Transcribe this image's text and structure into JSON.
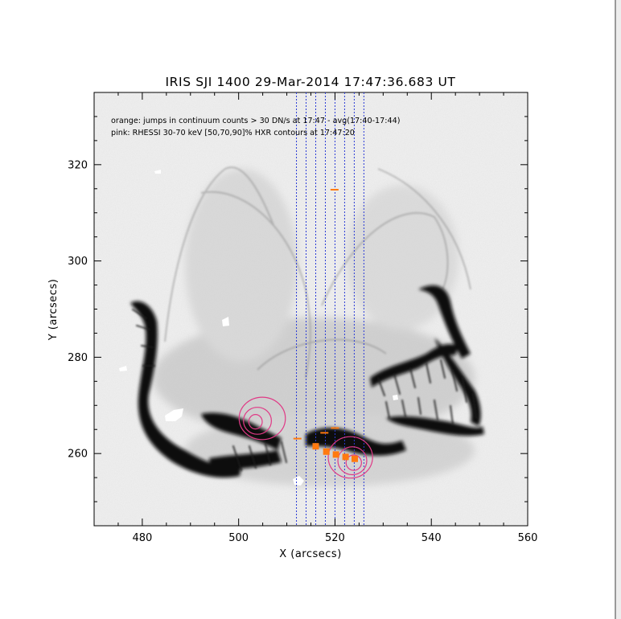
{
  "figure": {
    "title": "IRIS SJI 1400 29-Mar-2014 17:47:36.683 UT",
    "xlabel": "X (arcsecs)",
    "ylabel": "Y (arcsecs)",
    "annotations": [
      "orange: jumps in continuum counts > 30 DN/s at 17:47 - avg(17:40-17:44)",
      "pink: RHESSI 30-70 keV [50,70,90]% HXR contours at 17:47:20"
    ]
  },
  "axes": {
    "xlim": [
      470,
      560
    ],
    "ylim": [
      245,
      335
    ],
    "xticks": [
      480,
      500,
      520,
      540,
      560
    ],
    "yticks": [
      260,
      280,
      300,
      320
    ],
    "xtick_labels": [
      "480",
      "500",
      "520",
      "540",
      "560"
    ],
    "ytick_labels": [
      "260",
      "280",
      "300",
      "320"
    ]
  },
  "slit_positions_x": [
    512,
    514,
    516,
    518,
    520,
    522,
    524,
    526
  ],
  "colors": {
    "slits": "#2a3bd6",
    "orange": "#ff7a10",
    "pink": "#e03a86",
    "background": "#e9e9e9",
    "dark_emission": "#101010"
  },
  "orange_points": [
    {
      "x": 516,
      "y": 261.5,
      "kind": "square"
    },
    {
      "x": 518.2,
      "y": 260.4,
      "kind": "square"
    },
    {
      "x": 520.2,
      "y": 259.8,
      "kind": "square"
    },
    {
      "x": 522.2,
      "y": 259.3,
      "kind": "square"
    },
    {
      "x": 524.1,
      "y": 258.9,
      "kind": "square"
    },
    {
      "x": 519.9,
      "y": 314.8,
      "kind": "dash"
    },
    {
      "x": 517.8,
      "y": 264.3,
      "kind": "dash"
    },
    {
      "x": 520.0,
      "y": 265.3,
      "kind": "dash"
    },
    {
      "x": 512.2,
      "y": 263.1,
      "kind": "dash"
    }
  ],
  "hxr_contours": [
    {
      "source": "west",
      "levels": [
        {
          "cx": 504.9,
          "cy": 267.3,
          "rx": 4.8,
          "ry": 4.4
        },
        {
          "cx": 503.9,
          "cy": 266.8,
          "rx": 2.9,
          "ry": 2.8
        },
        {
          "cx": 503.5,
          "cy": 266.6,
          "rx": 1.4,
          "ry": 1.5
        }
      ]
    },
    {
      "source": "east",
      "levels": [
        {
          "cx": 523.2,
          "cy": 259.2,
          "rx": 4.6,
          "ry": 4.3
        },
        {
          "cx": 523.6,
          "cy": 258.5,
          "rx": 3.0,
          "ry": 2.9
        },
        {
          "cx": 523.9,
          "cy": 258.1,
          "rx": 1.6,
          "ry": 1.6
        }
      ]
    }
  ]
}
